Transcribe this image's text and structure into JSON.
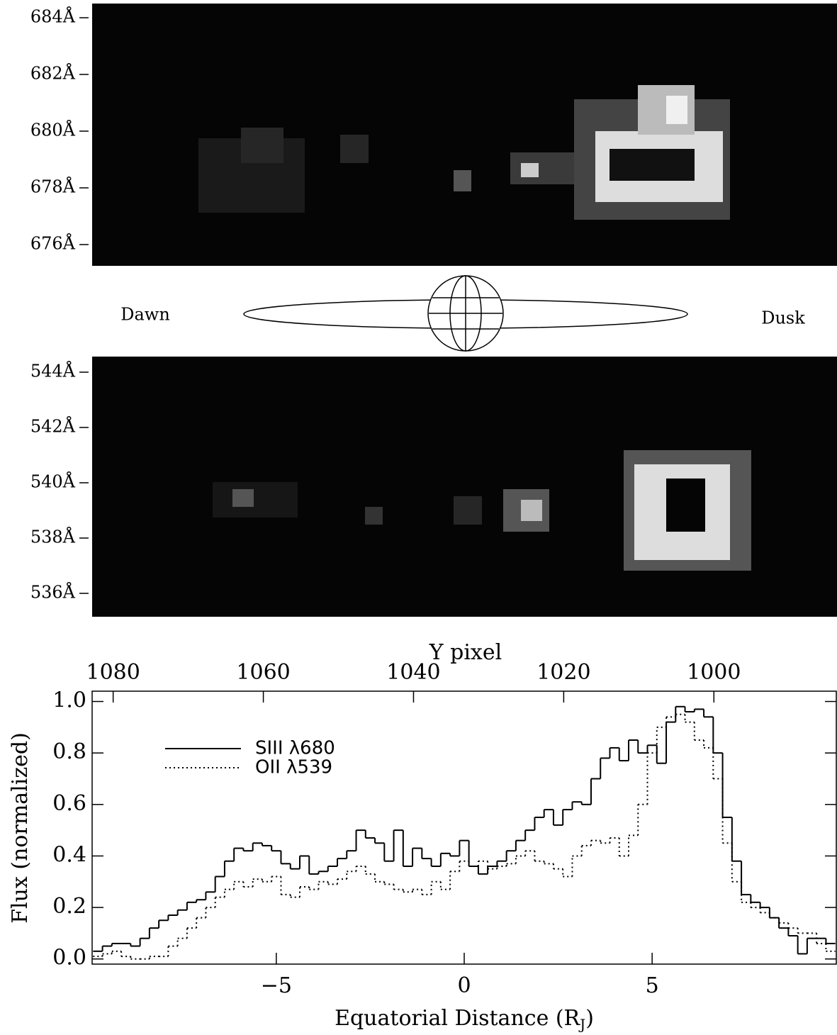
{
  "panels": [
    {
      "wavelength_labels": [
        "684Å",
        "682Å",
        "680Å",
        "678Å",
        "676Å"
      ]
    },
    {
      "wavelength_labels": [
        "544Å",
        "542Å",
        "540Å",
        "538Å",
        "536Å"
      ]
    }
  ],
  "diagram": {
    "left_label": "Dawn",
    "right_label": "Dusk"
  },
  "chart_data": {
    "type": "step",
    "x_label": [
      "Equatorial Distance (R",
      "J",
      ")"
    ],
    "y_label": "Flux (normalized)",
    "x2_label": "Y pixel",
    "x": [
      -9.75,
      -9.5,
      -9.25,
      -9.0,
      -8.75,
      -8.5,
      -8.25,
      -8.0,
      -7.75,
      -7.5,
      -7.25,
      -7.0,
      -6.75,
      -6.5,
      -6.25,
      -6.0,
      -5.75,
      -5.5,
      -5.25,
      -5.0,
      -4.75,
      -4.5,
      -4.25,
      -4.0,
      -3.75,
      -3.5,
      -3.25,
      -3.0,
      -2.75,
      -2.5,
      -2.25,
      -2.0,
      -1.75,
      -1.5,
      -1.25,
      -1.0,
      -0.75,
      -0.5,
      -0.25,
      0.0,
      0.25,
      0.5,
      0.75,
      1.0,
      1.25,
      1.5,
      1.75,
      2.0,
      2.25,
      2.5,
      2.75,
      3.0,
      3.25,
      3.5,
      3.75,
      4.0,
      4.25,
      4.5,
      4.75,
      5.0,
      5.25,
      5.5,
      5.75,
      6.0,
      6.25,
      6.5,
      6.75,
      7.0,
      7.25,
      7.5,
      7.75,
      8.0,
      8.25,
      8.5,
      8.75,
      9.0,
      9.25,
      9.5,
      9.75
    ],
    "series": [
      {
        "name": "SIII λ680",
        "color": "#000000",
        "dash": "solid",
        "values": [
          0.03,
          0.05,
          0.06,
          0.06,
          0.05,
          0.08,
          0.12,
          0.15,
          0.17,
          0.19,
          0.22,
          0.23,
          0.26,
          0.32,
          0.38,
          0.43,
          0.42,
          0.45,
          0.44,
          0.42,
          0.37,
          0.35,
          0.4,
          0.33,
          0.34,
          0.36,
          0.39,
          0.42,
          0.5,
          0.47,
          0.45,
          0.38,
          0.5,
          0.36,
          0.43,
          0.39,
          0.36,
          0.41,
          0.4,
          0.46,
          0.36,
          0.33,
          0.36,
          0.38,
          0.42,
          0.46,
          0.5,
          0.55,
          0.58,
          0.52,
          0.58,
          0.61,
          0.6,
          0.7,
          0.78,
          0.82,
          0.77,
          0.85,
          0.8,
          0.83,
          0.76,
          0.92,
          0.98,
          0.96,
          0.97,
          0.94,
          0.8,
          0.55,
          0.38,
          0.25,
          0.22,
          0.2,
          0.16,
          0.12,
          0.09,
          0.02,
          0.08,
          0.08,
          0.06
        ]
      },
      {
        "name": "OII λ539",
        "color": "#000000",
        "dash": "dotted",
        "values": [
          0.01,
          0.02,
          0.03,
          0.01,
          0.0,
          0.0,
          0.01,
          0.01,
          0.05,
          0.08,
          0.12,
          0.16,
          0.2,
          0.24,
          0.27,
          0.3,
          0.28,
          0.31,
          0.3,
          0.32,
          0.25,
          0.24,
          0.28,
          0.27,
          0.3,
          0.29,
          0.31,
          0.34,
          0.36,
          0.33,
          0.3,
          0.29,
          0.27,
          0.26,
          0.27,
          0.25,
          0.3,
          0.27,
          0.34,
          0.38,
          0.36,
          0.38,
          0.35,
          0.36,
          0.37,
          0.4,
          0.42,
          0.38,
          0.37,
          0.35,
          0.32,
          0.4,
          0.44,
          0.46,
          0.45,
          0.47,
          0.4,
          0.48,
          0.6,
          0.8,
          0.9,
          0.94,
          0.95,
          0.92,
          0.85,
          0.82,
          0.7,
          0.45,
          0.3,
          0.22,
          0.2,
          0.18,
          0.16,
          0.14,
          0.12,
          0.1,
          0.1,
          0.06,
          0.03
        ]
      }
    ],
    "xlim": [
      -9.9,
      9.9
    ],
    "ylim": [
      -0.02,
      1.04
    ],
    "xticks": [
      {
        "value": -5,
        "label": "−5"
      },
      0,
      5
    ],
    "yticks": [
      {
        "value": 0,
        "label": "0.0"
      },
      {
        "value": 0.2,
        "label": "0.2"
      },
      {
        "value": 0.4,
        "label": "0.4"
      },
      {
        "value": 0.6,
        "label": "0.6"
      },
      {
        "value": 0.8,
        "label": "0.8"
      },
      {
        "value": 1,
        "label": "1.0"
      }
    ],
    "x2lim": [
      1082.8,
      983.7
    ],
    "x2ticks": [
      1080,
      1060,
      1040,
      1020,
      1000
    ]
  }
}
